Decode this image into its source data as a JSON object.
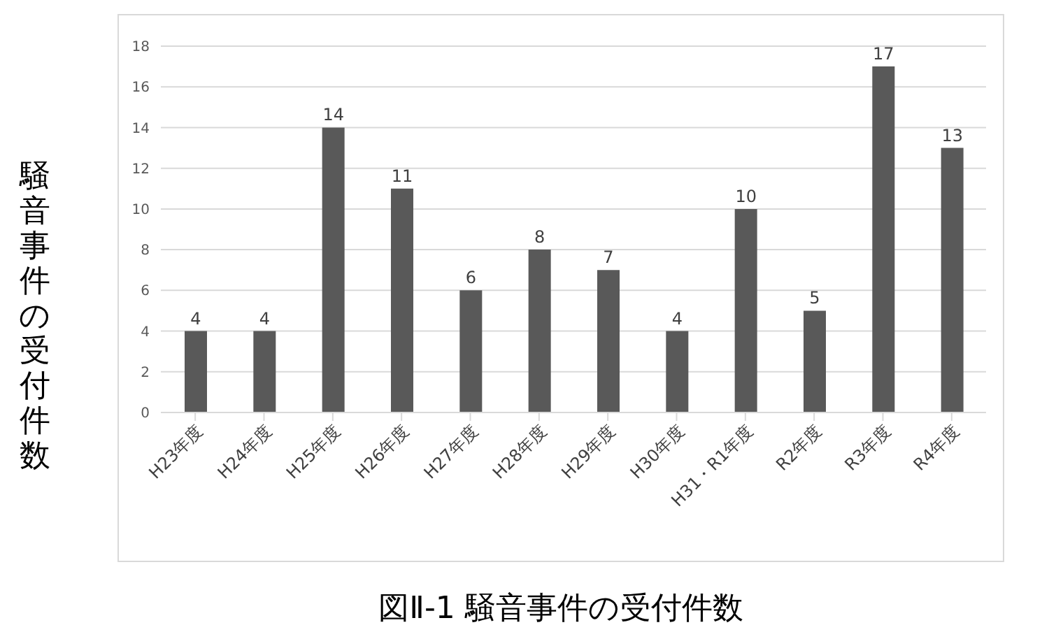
{
  "chart_data": {
    "type": "bar",
    "title": "図Ⅱ-1 騒音事件の受付件数",
    "ylabel": "騒音事件の受付件数",
    "categories": [
      "H23年度",
      "H24年度",
      "H25年度",
      "H26年度",
      "H27年度",
      "H28年度",
      "H29年度",
      "H30年度",
      "H31・R1年度",
      "R2年度",
      "R3年度",
      "R4年度"
    ],
    "values": [
      4,
      4,
      14,
      11,
      6,
      8,
      7,
      4,
      10,
      5,
      17,
      13
    ],
    "color": "#595959",
    "ylim": [
      0,
      18
    ],
    "yticks": [
      0,
      2,
      4,
      6,
      8,
      10,
      12,
      14,
      16,
      18
    ],
    "grid": "y",
    "data_labels": true,
    "legend": false
  }
}
